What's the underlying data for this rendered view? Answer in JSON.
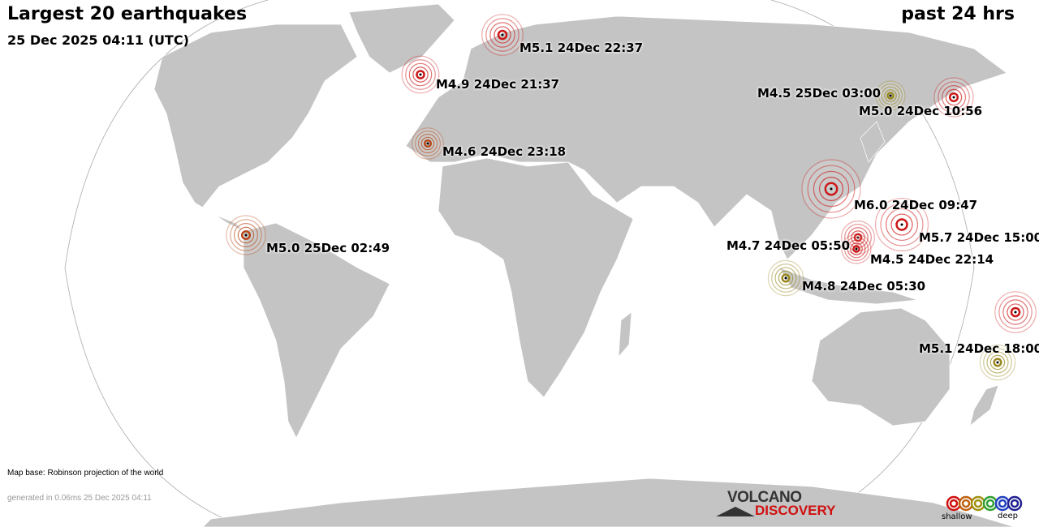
{
  "header": {
    "title": "Largest 20 earthquakes",
    "datetime": "25 Dec 2025 04:11 (UTC)",
    "period": "past 24 hrs"
  },
  "footer": {
    "map_base": "Map base: Robinson projection of the world",
    "generated": "generated in 0.06ms 25 Dec 2025 04:11"
  },
  "logo": {
    "line1": "VOLCANO",
    "line2": "DISCOVERY"
  },
  "legend": {
    "shallow": "shallow",
    "deep": "deep",
    "colors": [
      "#d01010",
      "#c06010",
      "#a09010",
      "#30a030",
      "#2040c0",
      "#202090"
    ]
  },
  "colors": {
    "land": "#c4c4c4",
    "ocean": "#ffffff",
    "border": "#ffffff"
  },
  "quakes": [
    {
      "label": "M5.1 24Dec 22:37",
      "mag": 5.1,
      "color": "#cc1818"
    },
    {
      "label": "M4.9 24Dec 21:37",
      "mag": 4.9,
      "color": "#cc1818"
    },
    {
      "label": "M4.6 24Dec 23:18",
      "mag": 4.6,
      "color": "#b84818"
    },
    {
      "label": "M5.0 25Dec 02:49",
      "mag": 5.0,
      "color": "#b84818"
    },
    {
      "label": "M4.5 25Dec 03:00",
      "mag": 4.5,
      "color": "#9a8a20"
    },
    {
      "label": "M5.0 24Dec 10:56",
      "mag": 5.0,
      "color": "#cc1818"
    },
    {
      "label": "M6.0 24Dec 09:47",
      "mag": 6.0,
      "color": "#cc1818"
    },
    {
      "label": "M5.7 24Dec 15:00",
      "mag": 5.7,
      "color": "#cc1818"
    },
    {
      "label": "M4.7 24Dec 05:50",
      "mag": 4.7,
      "color": "#cc1818"
    },
    {
      "label": "M4.5 24Dec 22:14",
      "mag": 4.5,
      "color": "#cc1818"
    },
    {
      "label": "M4.8 24Dec 05:30",
      "mag": 4.8,
      "color": "#9a8a20"
    },
    {
      "label": "M5.1 24Dec 18:00",
      "mag": 5.1,
      "color": "#cc1818"
    },
    {
      "label": "",
      "mag": 4.8,
      "color": "#9a8a20"
    }
  ]
}
